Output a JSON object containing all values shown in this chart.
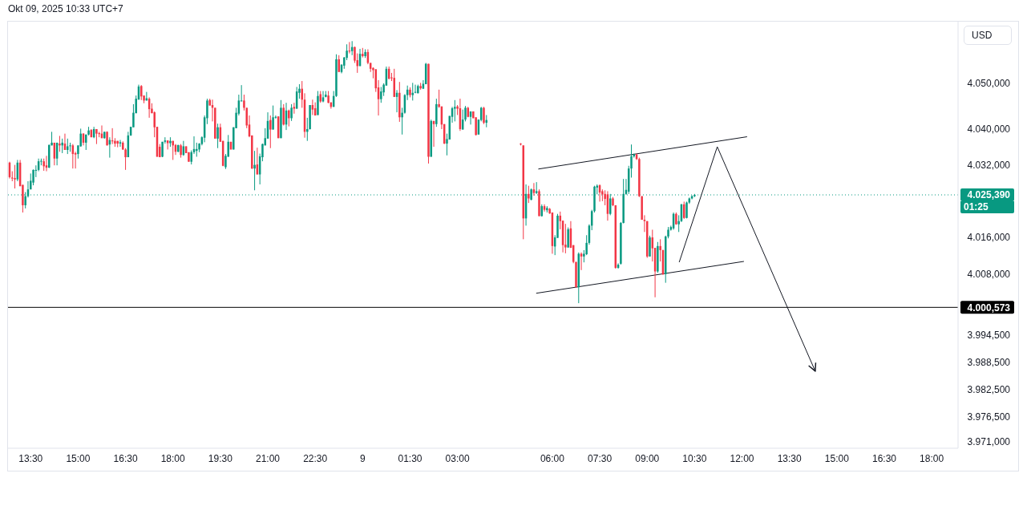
{
  "chart_data": {
    "type": "candlestick",
    "annotations": [
      "Okt 09, 2025 10:33 UTC+7",
      "01:25"
    ],
    "ylabel": "USD",
    "x": [
      "2025-10-08T12:50",
      "2025-10-08T12:55",
      "2025-10-08T13:00",
      "2025-10-08T13:05",
      "2025-10-08T13:10",
      "2025-10-08T13:15",
      "2025-10-08T13:20",
      "2025-10-08T13:25",
      "2025-10-08T13:30",
      "2025-10-08T13:35",
      "2025-10-08T13:40",
      "2025-10-08T13:45",
      "2025-10-08T13:50",
      "2025-10-08T13:55",
      "2025-10-08T14:00",
      "2025-10-08T14:05",
      "2025-10-08T14:10",
      "2025-10-08T14:15",
      "2025-10-08T14:20",
      "2025-10-08T14:25",
      "2025-10-08T14:30",
      "2025-10-08T14:35",
      "2025-10-08T14:40",
      "2025-10-08T14:45",
      "2025-10-08T14:50",
      "2025-10-08T14:55",
      "2025-10-08T15:00",
      "2025-10-08T15:05",
      "2025-10-08T15:10",
      "2025-10-08T15:15",
      "2025-10-08T15:20",
      "2025-10-08T15:25",
      "2025-10-08T15:30",
      "2025-10-08T15:35",
      "2025-10-08T15:40",
      "2025-10-08T15:45",
      "2025-10-08T15:50",
      "2025-10-08T15:55",
      "2025-10-08T16:00",
      "2025-10-08T16:05",
      "2025-10-08T16:10",
      "2025-10-08T16:15",
      "2025-10-08T16:20",
      "2025-10-08T16:25",
      "2025-10-08T16:30",
      "2025-10-08T16:35",
      "2025-10-08T16:40",
      "2025-10-08T16:45",
      "2025-10-08T16:50",
      "2025-10-08T16:55",
      "2025-10-08T17:00",
      "2025-10-08T17:05",
      "2025-10-08T17:10",
      "2025-10-08T17:15",
      "2025-10-08T17:20",
      "2025-10-08T17:25",
      "2025-10-08T17:30",
      "2025-10-08T17:35",
      "2025-10-08T17:40",
      "2025-10-08T17:45",
      "2025-10-08T17:50",
      "2025-10-08T17:55",
      "2025-10-08T18:00",
      "2025-10-08T18:05",
      "2025-10-08T18:10",
      "2025-10-08T18:15",
      "2025-10-08T18:20",
      "2025-10-08T18:25",
      "2025-10-08T18:30",
      "2025-10-08T18:35",
      "2025-10-08T18:40",
      "2025-10-08T18:45",
      "2025-10-08T18:50",
      "2025-10-08T18:55",
      "2025-10-08T19:00",
      "2025-10-08T19:05",
      "2025-10-08T19:10",
      "2025-10-08T19:15",
      "2025-10-08T19:20",
      "2025-10-08T19:25",
      "2025-10-08T19:30",
      "2025-10-08T19:35",
      "2025-10-08T19:40",
      "2025-10-08T19:45",
      "2025-10-08T19:50",
      "2025-10-08T19:55",
      "2025-10-08T20:00",
      "2025-10-08T20:05",
      "2025-10-08T20:10",
      "2025-10-08T20:15",
      "2025-10-08T20:20",
      "2025-10-08T20:25",
      "2025-10-08T20:30",
      "2025-10-08T20:35",
      "2025-10-08T20:40",
      "2025-10-08T20:45",
      "2025-10-08T20:50",
      "2025-10-08T20:55",
      "2025-10-08T21:00",
      "2025-10-08T21:05",
      "2025-10-08T21:10",
      "2025-10-08T21:15",
      "2025-10-08T21:20",
      "2025-10-08T21:25",
      "2025-10-08T21:30",
      "2025-10-08T21:35",
      "2025-10-08T21:40",
      "2025-10-08T21:45",
      "2025-10-08T21:50",
      "2025-10-08T21:55",
      "2025-10-08T22:00",
      "2025-10-08T22:05",
      "2025-10-08T22:10",
      "2025-10-08T22:15",
      "2025-10-08T22:20",
      "2025-10-08T22:25",
      "2025-10-08T22:30",
      "2025-10-08T22:35",
      "2025-10-08T22:40",
      "2025-10-08T22:45",
      "2025-10-08T22:50",
      "2025-10-08T22:55",
      "2025-10-08T23:00",
      "2025-10-08T23:05",
      "2025-10-08T23:10",
      "2025-10-08T23:15",
      "2025-10-08T23:20",
      "2025-10-08T23:25",
      "2025-10-08T23:30",
      "2025-10-08T23:35",
      "2025-10-08T23:40",
      "2025-10-08T23:45",
      "2025-10-08T23:50",
      "2025-10-08T23:55",
      "2025-10-09T00:00",
      "2025-10-09T00:05",
      "2025-10-09T00:10",
      "2025-10-09T00:15",
      "2025-10-09T00:20",
      "2025-10-09T00:25",
      "2025-10-09T00:30",
      "2025-10-09T00:35",
      "2025-10-09T00:40",
      "2025-10-09T00:45",
      "2025-10-09T00:50",
      "2025-10-09T00:55",
      "2025-10-09T01:00",
      "2025-10-09T01:05",
      "2025-10-09T01:10",
      "2025-10-09T01:15",
      "2025-10-09T01:20",
      "2025-10-09T01:25",
      "2025-10-09T01:30",
      "2025-10-09T01:35",
      "2025-10-09T01:40",
      "2025-10-09T01:45",
      "2025-10-09T01:50",
      "2025-10-09T01:55",
      "2025-10-09T02:00",
      "2025-10-09T02:05",
      "2025-10-09T02:10",
      "2025-10-09T02:15",
      "2025-10-09T02:20",
      "2025-10-09T02:25",
      "2025-10-09T02:30",
      "2025-10-09T02:35",
      "2025-10-09T02:40",
      "2025-10-09T02:45",
      "2025-10-09T02:50",
      "2025-10-09T02:55",
      "2025-10-09T03:00",
      "2025-10-09T03:05",
      "2025-10-09T03:10",
      "2025-10-09T03:15",
      "2025-10-09T03:20",
      "2025-10-09T03:25",
      "2025-10-09T03:30",
      "2025-10-09T03:35",
      "2025-10-09T03:40",
      "2025-10-09T03:45",
      "2025-10-09T03:50",
      "2025-10-09T03:55",
      "2025-10-09T05:00",
      "2025-10-09T05:05",
      "2025-10-09T05:10",
      "2025-10-09T05:15",
      "2025-10-09T05:20",
      "2025-10-09T05:25",
      "2025-10-09T05:30",
      "2025-10-09T05:35",
      "2025-10-09T05:40",
      "2025-10-09T05:45",
      "2025-10-09T05:50",
      "2025-10-09T05:55",
      "2025-10-09T06:00",
      "2025-10-09T06:05",
      "2025-10-09T06:10",
      "2025-10-09T06:15",
      "2025-10-09T06:20",
      "2025-10-09T06:25",
      "2025-10-09T06:30",
      "2025-10-09T06:35",
      "2025-10-09T06:40",
      "2025-10-09T06:45",
      "2025-10-09T06:50",
      "2025-10-09T06:55",
      "2025-10-09T07:00",
      "2025-10-09T07:05",
      "2025-10-09T07:10",
      "2025-10-09T07:15",
      "2025-10-09T07:20",
      "2025-10-09T07:25",
      "2025-10-09T07:30",
      "2025-10-09T07:35",
      "2025-10-09T07:40",
      "2025-10-09T07:45",
      "2025-10-09T07:50",
      "2025-10-09T07:55",
      "2025-10-09T08:00",
      "2025-10-09T08:05",
      "2025-10-09T08:10",
      "2025-10-09T08:15",
      "2025-10-09T08:20",
      "2025-10-09T08:25",
      "2025-10-09T08:30",
      "2025-10-09T08:35",
      "2025-10-09T08:40",
      "2025-10-09T08:45",
      "2025-10-09T08:50",
      "2025-10-09T08:55",
      "2025-10-09T09:00",
      "2025-10-09T09:05",
      "2025-10-09T09:10",
      "2025-10-09T09:15",
      "2025-10-09T09:20",
      "2025-10-09T09:25",
      "2025-10-09T09:30",
      "2025-10-09T09:35",
      "2025-10-09T09:40",
      "2025-10-09T09:45",
      "2025-10-09T09:50",
      "2025-10-09T09:55",
      "2025-10-09T10:00",
      "2025-10-09T10:05",
      "2025-10-09T10:10",
      "2025-10-09T10:15",
      "2025-10-09T10:20",
      "2025-10-09T10:25",
      "2025-10-09T10:30"
    ],
    "ohlc": [
      [
        4032.5,
        4032.7,
        4029.0,
        4029.3
      ],
      [
        4029.2,
        4030.6,
        4028.4,
        4029.0
      ],
      [
        4029.1,
        4032.0,
        4026.8,
        4028.8
      ],
      [
        4028.8,
        4033.1,
        4028.4,
        4032.5
      ],
      [
        4032.5,
        4033.1,
        4027.3,
        4027.3
      ],
      [
        4027.6,
        4027.6,
        4021.5,
        4023.1
      ],
      [
        4023.1,
        4026.0,
        4022.4,
        4025.1
      ],
      [
        4025.1,
        4028.4,
        4024.8,
        4026.6
      ],
      [
        4026.6,
        4030.1,
        4026.6,
        4028.5
      ],
      [
        4028.1,
        4031.0,
        4027.5,
        4030.9
      ],
      [
        4030.7,
        4031.9,
        4029.3,
        4030.9
      ],
      [
        4030.9,
        4033.4,
        4030.6,
        4032.8
      ],
      [
        4032.8,
        4033.4,
        4031.9,
        4032.9
      ],
      [
        4032.8,
        4033.4,
        4030.7,
        4031.7
      ],
      [
        4031.9,
        4034.0,
        4030.6,
        4031.4
      ],
      [
        4031.4,
        4036.5,
        4031.3,
        4036.4
      ],
      [
        4036.3,
        4039.3,
        4036.3,
        4036.9
      ],
      [
        4036.9,
        4036.9,
        4031.9,
        4033.4
      ],
      [
        4033.4,
        4036.9,
        4031.9,
        4036.9
      ],
      [
        4036.7,
        4038.4,
        4034.9,
        4036.3
      ],
      [
        4036.3,
        4037.8,
        4034.6,
        4036.9
      ],
      [
        4036.7,
        4038.9,
        4035.3,
        4035.3
      ],
      [
        4035.3,
        4037.8,
        4034.4,
        4036.1
      ],
      [
        4036.2,
        4036.9,
        4034.9,
        4036.3
      ],
      [
        4036.3,
        4036.6,
        4031.2,
        4034.4
      ],
      [
        4034.6,
        4034.9,
        4031.2,
        4034.3
      ],
      [
        4034.4,
        4036.3,
        4033.4,
        4036.3
      ],
      [
        4036.1,
        4040.0,
        4036.0,
        4038.9
      ],
      [
        4038.9,
        4039.0,
        4036.3,
        4036.9
      ],
      [
        4036.9,
        4038.7,
        4035.3,
        4038.7
      ],
      [
        4038.7,
        4040.4,
        4038.5,
        4039.6
      ],
      [
        4039.7,
        4039.9,
        4038.1,
        4038.1
      ],
      [
        4038.1,
        4040.4,
        4037.9,
        4039.9
      ],
      [
        4039.9,
        4039.9,
        4036.6,
        4038.9
      ],
      [
        4039.0,
        4039.3,
        4038.1,
        4038.8
      ],
      [
        4038.9,
        4040.7,
        4037.9,
        4037.9
      ],
      [
        4037.9,
        4039.3,
        4037.8,
        4039.3
      ],
      [
        4039.3,
        4039.4,
        4036.3,
        4036.3
      ],
      [
        4036.5,
        4038.1,
        4033.6,
        4037.5
      ],
      [
        4037.4,
        4040.1,
        4036.6,
        4037.2
      ],
      [
        4037.3,
        4037.9,
        4036.0,
        4036.7
      ],
      [
        4037.3,
        4037.3,
        4035.9,
        4036.7
      ],
      [
        4036.7,
        4037.5,
        4036.0,
        4037.0
      ],
      [
        4036.9,
        4037.2,
        4035.3,
        4035.4
      ],
      [
        4035.4,
        4035.7,
        4030.9,
        4033.7
      ],
      [
        4033.7,
        4039.3,
        4033.7,
        4038.5
      ],
      [
        4038.5,
        4040.4,
        4038.4,
        4040.4
      ],
      [
        4040.3,
        4045.4,
        4040.3,
        4043.5
      ],
      [
        4043.4,
        4047.3,
        4043.4,
        4046.6
      ],
      [
        4046.4,
        4049.7,
        4046.4,
        4049.3
      ],
      [
        4049.4,
        4049.6,
        4046.3,
        4047.1
      ],
      [
        4047.3,
        4047.3,
        4045.6,
        4046.2
      ],
      [
        4046.2,
        4048.1,
        4046.2,
        4046.7
      ],
      [
        4046.6,
        4046.9,
        4042.4,
        4044.3
      ],
      [
        4044.4,
        4045.6,
        4043.4,
        4043.4
      ],
      [
        4043.6,
        4043.8,
        4038.1,
        4040.3
      ],
      [
        4040.4,
        4040.4,
        4033.8,
        4033.8
      ],
      [
        4036.0,
        4036.6,
        4033.7,
        4033.7
      ],
      [
        4033.8,
        4037.1,
        4033.7,
        4037.1
      ],
      [
        4037.1,
        4038.1,
        4036.7,
        4037.4
      ],
      [
        4037.4,
        4037.4,
        4035.4,
        4036.8
      ],
      [
        4036.8,
        4038.1,
        4036.0,
        4037.3
      ],
      [
        4037.3,
        4037.3,
        4033.1,
        4036.3
      ],
      [
        4036.4,
        4036.6,
        4034.2,
        4034.9
      ],
      [
        4034.9,
        4036.4,
        4034.8,
        4036.4
      ],
      [
        4036.3,
        4036.6,
        4033.6,
        4034.2
      ],
      [
        4034.2,
        4037.3,
        4034.0,
        4036.1
      ],
      [
        4036.1,
        4036.1,
        4034.6,
        4034.6
      ],
      [
        4034.8,
        4034.8,
        4032.7,
        4032.7
      ],
      [
        4032.7,
        4035.2,
        4032.1,
        4034.8
      ],
      [
        4034.8,
        4038.3,
        4034.4,
        4035.5
      ],
      [
        4035.1,
        4036.9,
        4033.8,
        4035.5
      ],
      [
        4035.4,
        4036.8,
        4034.8,
        4036.7
      ],
      [
        4036.6,
        4038.3,
        4036.3,
        4038.1
      ],
      [
        4038.0,
        4042.9,
        4037.0,
        4042.5
      ],
      [
        4042.3,
        4046.6,
        4041.0,
        4046.2
      ],
      [
        4046.3,
        4046.6,
        4045.1,
        4045.1
      ],
      [
        4045.2,
        4046.4,
        4041.6,
        4044.6
      ],
      [
        4044.6,
        4044.6,
        4037.8,
        4037.8
      ],
      [
        4037.8,
        4041.1,
        4035.7,
        4040.3
      ],
      [
        4040.3,
        4041.1,
        4037.1,
        4037.1
      ],
      [
        4037.3,
        4037.3,
        4031.7,
        4031.8
      ],
      [
        4031.5,
        4034.4,
        4031.1,
        4034.0
      ],
      [
        4033.8,
        4038.6,
        4033.8,
        4037.1
      ],
      [
        4037.1,
        4037.1,
        4035.4,
        4035.4
      ],
      [
        4035.4,
        4040.3,
        4035.4,
        4040.3
      ],
      [
        4040.1,
        4044.6,
        4040.1,
        4043.5
      ],
      [
        4043.3,
        4047.5,
        4042.9,
        4046.2
      ],
      [
        4046.1,
        4049.6,
        4046.0,
        4046.2
      ],
      [
        4046.2,
        4047.5,
        4044.0,
        4044.6
      ],
      [
        4044.6,
        4044.6,
        4040.1,
        4040.7
      ],
      [
        4040.9,
        4042.9,
        4038.1,
        4038.3
      ],
      [
        4038.5,
        4038.5,
        4031.1,
        4031.2
      ],
      [
        4031.2,
        4035.1,
        4026.4,
        4032.0
      ],
      [
        4032.1,
        4035.8,
        4029.9,
        4029.9
      ],
      [
        4029.9,
        4034.5,
        4027.7,
        4033.9
      ],
      [
        4033.7,
        4036.7,
        4032.8,
        4036.6
      ],
      [
        4036.3,
        4040.1,
        4036.3,
        4037.9
      ],
      [
        4037.8,
        4043.6,
        4037.8,
        4041.7
      ],
      [
        4041.9,
        4042.9,
        4035.7,
        4039.8
      ],
      [
        4039.8,
        4045.1,
        4039.8,
        4042.5
      ],
      [
        4042.4,
        4042.9,
        4042.2,
        4042.6
      ],
      [
        4042.7,
        4042.7,
        4037.9,
        4037.9
      ],
      [
        4037.9,
        4046.3,
        4037.9,
        4044.6
      ],
      [
        4044.6,
        4045.4,
        4040.7,
        4040.9
      ],
      [
        4040.9,
        4045.7,
        4039.7,
        4044.0
      ],
      [
        4044.0,
        4044.2,
        4040.5,
        4042.3
      ],
      [
        4042.3,
        4045.4,
        4041.7,
        4044.6
      ],
      [
        4044.8,
        4045.7,
        4043.3,
        4044.4
      ],
      [
        4044.4,
        4049.2,
        4044.4,
        4048.2
      ],
      [
        4047.9,
        4049.8,
        4046.6,
        4048.8
      ],
      [
        4048.8,
        4050.5,
        4044.6,
        4046.4
      ],
      [
        4046.4,
        4047.8,
        4038.0,
        4039.3
      ],
      [
        4039.3,
        4042.4,
        4037.3,
        4039.9
      ],
      [
        4039.9,
        4045.2,
        4039.8,
        4045.2
      ],
      [
        4045.2,
        4046.4,
        4043.0,
        4044.2
      ],
      [
        4044.5,
        4045.8,
        4042.9,
        4042.9
      ],
      [
        4043.0,
        4048.3,
        4043.0,
        4047.2
      ],
      [
        4047.6,
        4048.3,
        4045.7,
        4046.0
      ],
      [
        4046.0,
        4048.3,
        4045.8,
        4046.9
      ],
      [
        4047.0,
        4048.3,
        4046.9,
        4047.5
      ],
      [
        4047.3,
        4048.3,
        4045.6,
        4045.7
      ],
      [
        4045.8,
        4045.8,
        4044.4,
        4044.8
      ],
      [
        4044.8,
        4048.3,
        4044.8,
        4047.2
      ],
      [
        4047.2,
        4056.4,
        4047.0,
        4055.3
      ],
      [
        4055.3,
        4056.2,
        4052.5,
        4052.5
      ],
      [
        4052.5,
        4054.2,
        4052.2,
        4054.1
      ],
      [
        4053.9,
        4055.8,
        4053.2,
        4055.7
      ],
      [
        4055.6,
        4058.6,
        4055.1,
        4057.2
      ],
      [
        4057.2,
        4059.1,
        4056.6,
        4057.1
      ],
      [
        4057.1,
        4059.3,
        4056.2,
        4058.0
      ],
      [
        4058.0,
        4058.1,
        4054.5,
        4055.0
      ],
      [
        4055.1,
        4056.6,
        4052.3,
        4053.8
      ],
      [
        4053.8,
        4057.6,
        4053.8,
        4056.5
      ],
      [
        4056.5,
        4057.8,
        4055.7,
        4056.0
      ],
      [
        4056.0,
        4057.5,
        4055.6,
        4056.9
      ],
      [
        4056.9,
        4057.5,
        4054.2,
        4054.5
      ],
      [
        4054.5,
        4054.5,
        4052.5,
        4053.2
      ],
      [
        4053.4,
        4053.5,
        4051.1,
        4052.9
      ],
      [
        4053.1,
        4053.1,
        4048.1,
        4048.9
      ],
      [
        4049.1,
        4050.7,
        4042.9,
        4046.5
      ],
      [
        4046.5,
        4049.2,
        4045.7,
        4048.2
      ],
      [
        4048.0,
        4050.0,
        4047.2,
        4049.7
      ],
      [
        4049.5,
        4053.7,
        4049.5,
        4053.2
      ],
      [
        4053.2,
        4053.7,
        4050.9,
        4051.0
      ],
      [
        4051.3,
        4052.3,
        4050.5,
        4051.1
      ],
      [
        4051.2,
        4053.2,
        4047.0,
        4047.0
      ],
      [
        4047.0,
        4048.5,
        4043.6,
        4047.9
      ],
      [
        4047.9,
        4050.3,
        4041.5,
        4042.5
      ],
      [
        4042.5,
        4044.6,
        4038.7,
        4043.5
      ],
      [
        4043.5,
        4047.6,
        4043.3,
        4047.4
      ],
      [
        4047.4,
        4049.5,
        4046.3,
        4048.6
      ],
      [
        4048.6,
        4049.1,
        4046.9,
        4047.4
      ],
      [
        4047.4,
        4050.1,
        4046.2,
        4047.9
      ],
      [
        4048.0,
        4049.7,
        4047.8,
        4048.1
      ],
      [
        4047.8,
        4049.7,
        4047.8,
        4049.4
      ],
      [
        4049.4,
        4050.1,
        4048.6,
        4048.9
      ],
      [
        4048.8,
        4050.7,
        4048.8,
        4049.9
      ],
      [
        4049.8,
        4054.5,
        4049.8,
        4054.3
      ],
      [
        4054.3,
        4054.3,
        4032.3,
        4033.8
      ],
      [
        4033.8,
        4042.0,
        4033.8,
        4041.7
      ],
      [
        4041.7,
        4041.7,
        4036.0,
        4041.0
      ],
      [
        4041.0,
        4046.6,
        4040.4,
        4045.4
      ],
      [
        4045.4,
        4048.6,
        4044.6,
        4044.8
      ],
      [
        4044.9,
        4044.9,
        4039.9,
        4040.9
      ],
      [
        4041.0,
        4041.0,
        4036.6,
        4036.7
      ],
      [
        4036.7,
        4038.9,
        4034.1,
        4037.7
      ],
      [
        4037.6,
        4042.8,
        4037.6,
        4042.8
      ],
      [
        4042.6,
        4044.8,
        4041.3,
        4044.5
      ],
      [
        4044.4,
        4046.3,
        4041.6,
        4044.8
      ],
      [
        4044.9,
        4045.2,
        4043.0,
        4044.4
      ],
      [
        4044.5,
        4046.6,
        4039.5,
        4039.9
      ],
      [
        4039.8,
        4044.2,
        4039.8,
        4042.0
      ],
      [
        4042.0,
        4045.0,
        4041.6,
        4044.6
      ],
      [
        4044.6,
        4044.8,
        4042.5,
        4042.6
      ],
      [
        4042.6,
        4043.8,
        4040.9,
        4043.8
      ],
      [
        4043.8,
        4043.8,
        4042.3,
        4042.3
      ],
      [
        4042.5,
        4042.5,
        4038.5,
        4038.6
      ],
      [
        4038.7,
        4042.0,
        4038.7,
        4042.0
      ],
      [
        4041.9,
        4044.8,
        4041.6,
        4044.6
      ],
      [
        4044.6,
        4044.8,
        4041.0,
        4041.3
      ],
      [
        4041.3,
        4043.0,
        4040.3,
        4041.9
      ],
      [
        4036.7,
        4036.8,
        4036.3,
        4036.5
      ],
      [
        4036.3,
        4036.3,
        4015.6,
        4020.2
      ],
      [
        4020.2,
        4027.7,
        4018.6,
        4025.6
      ],
      [
        4025.6,
        4027.4,
        4023.6,
        4024.6
      ],
      [
        4024.3,
        4026.8,
        4024.2,
        4026.6
      ],
      [
        4026.6,
        4028.0,
        4025.2,
        4025.8
      ],
      [
        4025.8,
        4028.2,
        4025.6,
        4026.2
      ],
      [
        4026.2,
        4026.6,
        4020.7,
        4020.7
      ],
      [
        4020.7,
        4023.3,
        4020.6,
        4022.9
      ],
      [
        4022.9,
        4023.3,
        4021.7,
        4022.1
      ],
      [
        4022.0,
        4022.9,
        4021.5,
        4022.5
      ],
      [
        4022.3,
        4022.5,
        4021.2,
        4021.3
      ],
      [
        4021.5,
        4021.5,
        4012.4,
        4014.1
      ],
      [
        4014.0,
        4016.5,
        4012.1,
        4016.0
      ],
      [
        4015.9,
        4021.2,
        4015.9,
        4020.8
      ],
      [
        4020.8,
        4021.7,
        4017.8,
        4019.6
      ],
      [
        4019.7,
        4019.7,
        4012.7,
        4014.3
      ],
      [
        4014.4,
        4019.0,
        4012.5,
        4013.8
      ],
      [
        4013.8,
        4018.2,
        4013.7,
        4017.8
      ],
      [
        4018.0,
        4019.6,
        4013.7,
        4013.7
      ],
      [
        4014.3,
        4014.3,
        4010.3,
        4010.6
      ],
      [
        4010.6,
        4010.6,
        4005.0,
        4005.0
      ],
      [
        4005.0,
        4012.7,
        4001.5,
        4012.4
      ],
      [
        4012.4,
        4012.7,
        4008.8,
        4011.8
      ],
      [
        4011.8,
        4013.2,
        4010.5,
        4012.4
      ],
      [
        4012.3,
        4016.5,
        4012.1,
        4014.8
      ],
      [
        4014.8,
        4018.9,
        4014.4,
        4018.6
      ],
      [
        4018.6,
        4022.1,
        4017.6,
        4021.8
      ],
      [
        4021.8,
        4027.4,
        4021.5,
        4027.2
      ],
      [
        4027.0,
        4027.7,
        4025.5,
        4027.4
      ],
      [
        4027.5,
        4027.7,
        4023.9,
        4025.9
      ],
      [
        4026.2,
        4026.6,
        4024.0,
        4025.5
      ],
      [
        4025.6,
        4026.4,
        4023.1,
        4024.5
      ],
      [
        4025.5,
        4026.2,
        4019.7,
        4021.2
      ],
      [
        4021.2,
        4025.6,
        4020.9,
        4024.6
      ],
      [
        4024.6,
        4024.9,
        4022.9,
        4023.1
      ],
      [
        4023.1,
        4023.1,
        4009.1,
        4009.3
      ],
      [
        4009.3,
        4010.3,
        4009.1,
        4010.0
      ],
      [
        4010.2,
        4019.4,
        4010.0,
        4019.2
      ],
      [
        4019.2,
        4028.9,
        4019.1,
        4025.6
      ],
      [
        4025.6,
        4028.9,
        4025.4,
        4026.5
      ],
      [
        4026.1,
        4031.8,
        4025.6,
        4031.2
      ],
      [
        4031.2,
        4036.5,
        4029.2,
        4033.9
      ],
      [
        4033.9,
        4034.5,
        4033.6,
        4034.3
      ],
      [
        4034.3,
        4034.5,
        4033.1,
        4033.3
      ],
      [
        4033.3,
        4033.6,
        4024.9,
        4025.1
      ],
      [
        4025.1,
        4025.1,
        4019.9,
        4019.9
      ],
      [
        4019.9,
        4020.9,
        4017.2,
        4019.6
      ],
      [
        4019.6,
        4019.6,
        4011.5,
        4011.8
      ],
      [
        4011.8,
        4016.4,
        4011.8,
        4016.0
      ],
      [
        4016.0,
        4017.7,
        4010.7,
        4013.6
      ],
      [
        4013.7,
        4013.7,
        4002.8,
        4008.5
      ],
      [
        4008.5,
        4015.0,
        4008.2,
        4014.1
      ],
      [
        4014.1,
        4015.6,
        4010.7,
        4013.2
      ],
      [
        4013.2,
        4013.3,
        4007.7,
        4007.9
      ],
      [
        4007.9,
        4016.4,
        4006.0,
        4016.2
      ],
      [
        4016.2,
        4018.3,
        4015.8,
        4017.7
      ],
      [
        4017.7,
        4018.6,
        4017.5,
        4018.3
      ],
      [
        4018.0,
        4021.5,
        4017.7,
        4021.2
      ],
      [
        4021.2,
        4021.5,
        4018.8,
        4018.9
      ],
      [
        4018.9,
        4020.9,
        4017.2,
        4019.6
      ],
      [
        4019.6,
        4023.4,
        4019.4,
        4023.3
      ],
      [
        4023.3,
        4023.9,
        4020.1,
        4020.3
      ],
      [
        4020.3,
        4023.9,
        4020.2,
        4023.7
      ],
      [
        4023.7,
        4024.8,
        4023.4,
        4024.6
      ],
      [
        4024.6,
        4025.3,
        4024.4,
        4025.1
      ],
      [
        4025.1,
        4025.6,
        4024.9,
        4025.39
      ]
    ],
    "colors": [
      "#f23645",
      "#f23645",
      "#f23645",
      "#089981",
      "#f23645",
      "#f23645",
      "#089981",
      "#089981",
      "#089981",
      "#089981",
      "#089981",
      "#089981",
      "#089981",
      "#f23645",
      "#f23645",
      "#089981",
      "#089981",
      "#f23645",
      "#089981",
      "#f23645",
      "#089981",
      "#f23645",
      "#089981",
      "#089981",
      "#f23645",
      "#f23645",
      "#089981",
      "#089981",
      "#f23645",
      "#089981",
      "#089981",
      "#f23645",
      "#089981",
      "#f23645",
      "#f23645",
      "#f23645",
      "#089981",
      "#f23645",
      "#089981",
      "#f23645",
      "#f23645",
      "#f23645",
      "#089981",
      "#f23645",
      "#f23645",
      "#089981",
      "#089981",
      "#089981",
      "#089981",
      "#089981",
      "#f23645",
      "#f23645",
      "#089981",
      "#f23645",
      "#f23645",
      "#f23645",
      "#f23645",
      "#f23645",
      "#089981",
      "#089981",
      "#f23645",
      "#089981",
      "#f23645",
      "#f23645",
      "#089981",
      "#f23645",
      "#089981",
      "#f23645",
      "#f23645",
      "#089981",
      "#089981",
      "#089981",
      "#089981",
      "#089981",
      "#089981",
      "#089981",
      "#f23645",
      "#f23645",
      "#f23645",
      "#089981",
      "#f23645",
      "#f23645",
      "#089981",
      "#089981",
      "#f23645",
      "#089981",
      "#089981",
      "#089981",
      "#089981",
      "#f23645",
      "#f23645",
      "#f23645",
      "#f23645",
      "#089981",
      "#f23645",
      "#089981",
      "#089981",
      "#089981",
      "#089981",
      "#f23645",
      "#089981",
      "#089981",
      "#f23645",
      "#089981",
      "#f23645",
      "#089981",
      "#f23645",
      "#089981",
      "#f23645",
      "#089981",
      "#089981",
      "#f23645",
      "#f23645",
      "#089981",
      "#089981",
      "#f23645",
      "#f23645",
      "#089981",
      "#f23645",
      "#089981",
      "#089981",
      "#f23645",
      "#f23645",
      "#089981",
      "#089981",
      "#f23645",
      "#089981",
      "#089981",
      "#089981",
      "#f23645",
      "#089981",
      "#f23645",
      "#f23645",
      "#089981",
      "#f23645",
      "#089981",
      "#f23645",
      "#f23645",
      "#f23645",
      "#f23645",
      "#f23645",
      "#089981",
      "#089981",
      "#089981",
      "#f23645",
      "#f23645",
      "#f23645",
      "#089981",
      "#f23645",
      "#089981",
      "#089981",
      "#089981",
      "#f23645",
      "#089981",
      "#089981",
      "#089981",
      "#f23645",
      "#089981",
      "#089981",
      "#f23645",
      "#089981",
      "#f23645",
      "#089981",
      "#f23645",
      "#f23645",
      "#f23645",
      "#089981",
      "#089981",
      "#089981",
      "#089981",
      "#f23645",
      "#f23645",
      "#089981",
      "#089981",
      "#f23645",
      "#089981",
      "#f23645",
      "#f23645",
      "#089981",
      "#089981",
      "#f23645",
      "#089981",
      "#f23645",
      "#f23645",
      "#089981",
      "#f23645",
      "#089981",
      "#f23645",
      "#089981",
      "#f23645",
      "#089981",
      "#f23645",
      "#089981",
      "#f23645",
      "#f23645",
      "#089981",
      "#089981",
      "#f23645",
      "#f23645",
      "#f23645",
      "#089981",
      "#f23645",
      "#f23645",
      "#f23645",
      "#089981",
      "#f23645",
      "#089981",
      "#089981",
      "#089981",
      "#089981",
      "#089981",
      "#089981",
      "#f23645",
      "#f23645",
      "#f23645",
      "#f23645",
      "#089981",
      "#f23645",
      "#f23645",
      "#089981",
      "#089981",
      "#089981",
      "#089981",
      "#089981",
      "#089981",
      "#089981",
      "#f23645",
      "#f23645",
      "#f23645",
      "#f23645",
      "#f23645",
      "#089981",
      "#f23645",
      "#f23645",
      "#089981",
      "#f23645",
      "#f23645",
      "#089981",
      "#089981",
      "#089981",
      "#089981",
      "#f23645",
      "#089981",
      "#089981",
      "#f23645",
      "#089981",
      "#089981",
      "#089981",
      "#089981"
    ],
    "series": [
      {
        "type": "line",
        "x": [
          "2025-10-09T05:34",
          "2025-10-09T12:09"
        ],
        "values": [
          4031.1,
          4038.2
        ],
        "color": "#131722"
      },
      {
        "type": "line",
        "x": [
          "2025-10-09T05:30",
          "2025-10-09T12:03"
        ],
        "values": [
          4003.7,
          4010.7
        ],
        "color": "#131722"
      },
      {
        "type": "line",
        "x": [
          "2025-10-09T10:01",
          "2025-10-09T11:13",
          "2025-10-09T14:19"
        ],
        "values": [
          4010.6,
          4036.0,
          3986.5
        ],
        "color": "#131722"
      }
    ],
    "ref_lines": [
      {
        "axis": "y",
        "value": 4000.573,
        "label": "4.000,573",
        "color": "#000000",
        "line_style": "solid"
      },
      {
        "axis": "y",
        "value": 4025.39,
        "label": "4.025,390",
        "color": "#089981",
        "line_style": "dotted"
      }
    ],
    "xlim": [
      "2025-10-08T12:47",
      "2025-10-09T18:50"
    ],
    "xticks": [
      {
        "value": "2025-10-08T13:30",
        "label": "13:30"
      },
      {
        "value": "2025-10-08T15:00",
        "label": "15:00"
      },
      {
        "value": "2025-10-08T16:30",
        "label": "16:30"
      },
      {
        "value": "2025-10-08T18:00",
        "label": "18:00"
      },
      {
        "value": "2025-10-08T19:30",
        "label": "19:30"
      },
      {
        "value": "2025-10-08T21:00",
        "label": "21:00"
      },
      {
        "value": "2025-10-08T22:30",
        "label": "22:30"
      },
      {
        "value": "2025-10-09T00:00",
        "label": "9"
      },
      {
        "value": "2025-10-09T01:30",
        "label": "01:30"
      },
      {
        "value": "2025-10-09T03:00",
        "label": "03:00"
      },
      {
        "value": "2025-10-09T06:00",
        "label": "06:00"
      },
      {
        "value": "2025-10-09T07:30",
        "label": "07:30"
      },
      {
        "value": "2025-10-09T09:00",
        "label": "09:00"
      },
      {
        "value": "2025-10-09T10:30",
        "label": "10:30"
      },
      {
        "value": "2025-10-09T12:00",
        "label": "12:00"
      },
      {
        "value": "2025-10-09T13:30",
        "label": "13:30"
      },
      {
        "value": "2025-10-09T15:00",
        "label": "15:00"
      },
      {
        "value": "2025-10-09T16:30",
        "label": "16:30"
      },
      {
        "value": "2025-10-09T18:00",
        "label": "18:00"
      }
    ],
    "ylim": [
      3969.5,
      4063.6
    ],
    "yticks": [
      {
        "value": 4050,
        "label": "4.050,000"
      },
      {
        "value": 4040,
        "label": "4.040,000"
      },
      {
        "value": 4032,
        "label": "4.032,000"
      },
      {
        "value": 4016,
        "label": "4.016,000"
      },
      {
        "value": 4008,
        "label": "4.008,000"
      },
      {
        "value": 3994.5,
        "label": "3.994,500"
      },
      {
        "value": 3988.5,
        "label": "3.988,500"
      },
      {
        "value": 3982.5,
        "label": "3.982,500"
      },
      {
        "value": 3976.5,
        "label": "3.976,500"
      },
      {
        "value": 3971,
        "label": "3.971,000"
      }
    ]
  }
}
